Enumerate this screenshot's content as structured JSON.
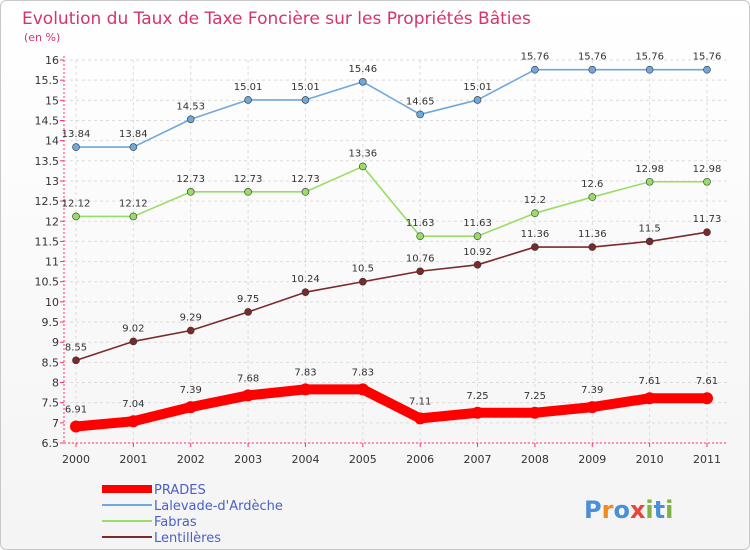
{
  "chart_data": {
    "type": "line",
    "title": "Evolution du Taux de Taxe Foncière sur les Propriétés Bâties",
    "subtitle": "(en %)",
    "x": [
      "2000",
      "2001",
      "2002",
      "2003",
      "2004",
      "2005",
      "2006",
      "2007",
      "2008",
      "2009",
      "2010",
      "2011"
    ],
    "ylim": [
      6.5,
      16
    ],
    "yticks": [
      "6.5",
      "7",
      "7.5",
      "8",
      "8.5",
      "9",
      "9.5",
      "10",
      "10.5",
      "11",
      "11.5",
      "12",
      "12.5",
      "13",
      "13.5",
      "14",
      "14.5",
      "15",
      "15.5",
      "16"
    ],
    "grid": true,
    "legend_position": "bottom-left",
    "series": [
      {
        "name": "PRADES",
        "color": "#ff0000",
        "values": [
          6.91,
          7.04,
          7.39,
          7.68,
          7.83,
          7.83,
          7.11,
          7.25,
          7.25,
          7.39,
          7.61,
          7.61
        ],
        "labels": [
          "6.91",
          "7.04",
          "7.39",
          "7.68",
          "7.83",
          "7.83",
          "7.11",
          "7.25",
          "7.25",
          "7.39",
          "7.61",
          "7.61"
        ]
      },
      {
        "name": "Lalevade-d'Ardèche",
        "color": "#6fa8dc",
        "values": [
          13.84,
          13.84,
          14.53,
          15.01,
          15.01,
          15.46,
          14.65,
          15.01,
          15.76,
          15.76,
          15.76,
          15.76
        ],
        "labels": [
          "13.84",
          "13.84",
          "14.53",
          "15.01",
          "15.01",
          "15.46",
          "14.65",
          "15.01",
          "15.76",
          "15.76",
          "15.76",
          "15.76"
        ]
      },
      {
        "name": "Fabras",
        "color": "#99dd66",
        "values": [
          12.12,
          12.12,
          12.73,
          12.73,
          12.73,
          13.36,
          11.63,
          11.63,
          12.2,
          12.6,
          12.98,
          12.98
        ],
        "labels": [
          "12.12",
          "12.12",
          "12.73",
          "12.73",
          "12.73",
          "13.36",
          "11.63",
          "11.63",
          "12.2",
          "12.6",
          "12.98",
          "12.98"
        ]
      },
      {
        "name": "Lentillères",
        "color": "#7a2a2a",
        "values": [
          8.55,
          9.02,
          9.29,
          9.75,
          10.24,
          10.5,
          10.76,
          10.92,
          11.36,
          11.36,
          11.5,
          11.73
        ],
        "labels": [
          "8.55",
          "9.02",
          "9.29",
          "9.75",
          "10.24",
          "10.5",
          "10.76",
          "10.92",
          "11.36",
          "11.36",
          "11.5",
          "11.73"
        ]
      }
    ]
  },
  "logo": {
    "text": "Proxiti"
  }
}
